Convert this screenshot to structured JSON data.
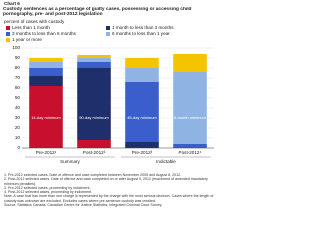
{
  "chart_data": {
    "type": "bar",
    "stacked": true,
    "label": "Chart 6",
    "title": "Custody sentences as a percentage of guilty cases, possessing or accessing child pornography, pre- and post-2012 legislation",
    "ylabel": "percent of cases with custody",
    "categories": [
      "Pre-2012¹",
      "Post-2012²",
      "Pre-2012³",
      "Post-2012⁴"
    ],
    "groups": [
      {
        "name": "Summary",
        "span": [
          0,
          1
        ]
      },
      {
        "name": "Indictable",
        "span": [
          2,
          3
        ]
      }
    ],
    "series": [
      {
        "name": "Less than 1 month",
        "color": "#c8102e",
        "values": [
          62,
          8,
          0,
          0
        ]
      },
      {
        "name": "1 month to less than 3 months",
        "color": "#1f2f6b",
        "values": [
          10,
          72,
          6,
          0
        ]
      },
      {
        "name": "3 months to less than 6 months",
        "color": "#3a5fcd",
        "values": [
          8,
          6,
          60,
          4
        ]
      },
      {
        "name": "6 months to less than 1 year",
        "color": "#8fb4e3",
        "values": [
          6,
          4,
          14,
          72
        ]
      },
      {
        "name": "1 year or more",
        "color": "#f2c500",
        "values": [
          4,
          3,
          10,
          18
        ]
      }
    ],
    "annotations": [
      {
        "text": "14-day minimum",
        "bar": 0
      },
      {
        "text": "90-day minimum",
        "bar": 1
      },
      {
        "text": "45-day minimum",
        "bar": 2
      },
      {
        "text": "6-month minimum",
        "bar": 3
      }
    ],
    "ylim": [
      0,
      100
    ],
    "yticks": [
      0,
      10,
      20,
      30,
      40,
      50,
      60,
      70,
      80,
      90,
      100
    ],
    "grid": true,
    "notes": [
      "1. Pre-2012 selected cases. Date of offence and case completed between November 2005 and August 8, 2012.",
      "2. Post-2012 selected cases. Date of offence and case completed on or after August 9, 2012 (enactment of amended mandatory minimum penalties).",
      "3. Pre-2012 selected cases, proceeding by indictment.",
      "4. Post-2012 selected cases, proceeding by indictment.",
      "Note: A case that has more than one charge is represented by the charge with the most serious decision. Cases where the length of custody was unknown are excluded. Excludes cases where pre-sentence custody was credited."
    ],
    "source": "Source: Statistics Canada, Canadian Centre for Justice Statistics, Integrated Criminal Court Survey."
  }
}
